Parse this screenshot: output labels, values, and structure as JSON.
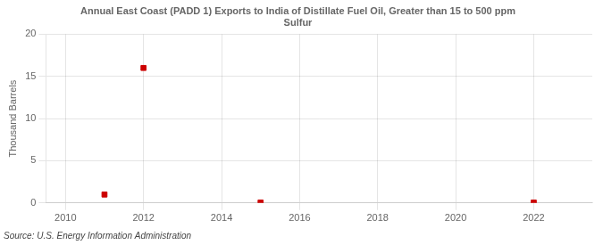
{
  "chart_data": {
    "type": "scatter",
    "title": "Annual East Coast (PADD 1) Exports to India of Distillate Fuel Oil, Greater than 15 to 500 ppm\nSulfur",
    "y_label": "Thousand Barrels",
    "annotations": [
      "Source: U.S. Energy Information Administration"
    ],
    "x": [
      2011,
      2012,
      2015,
      2022
    ],
    "values": [
      1.0,
      16.0,
      0.05,
      0.05
    ],
    "color": "#cc0000",
    "marker": "square",
    "xlim": [
      2009.5,
      2023.5
    ],
    "xticks": [
      2010,
      2012,
      2014,
      2016,
      2018,
      2020,
      2022
    ],
    "ylim": [
      0,
      20
    ],
    "yticks": [
      0,
      5,
      10,
      15,
      20
    ],
    "grid": true
  }
}
